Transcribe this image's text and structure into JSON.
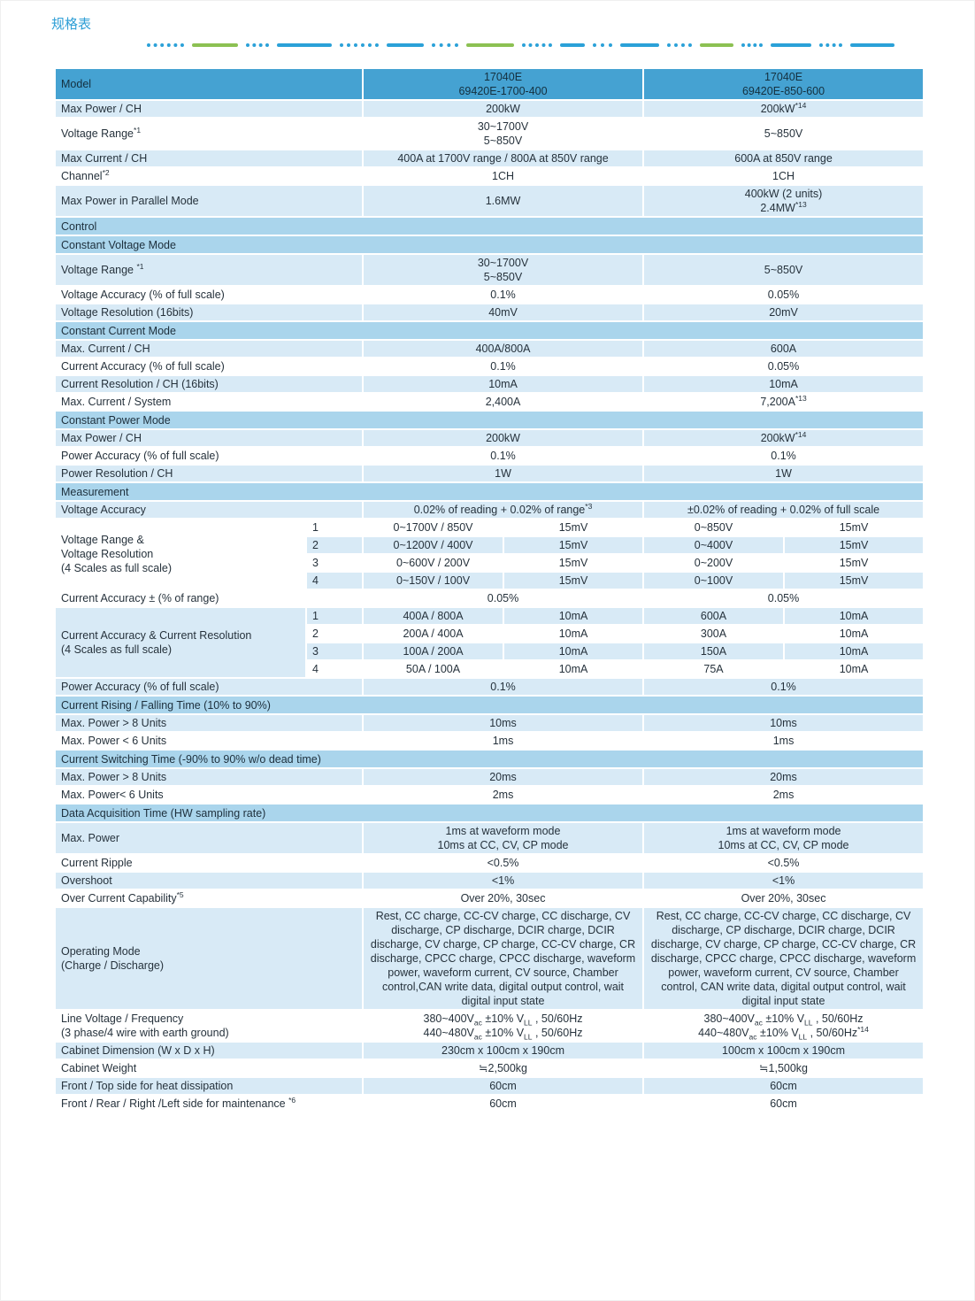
{
  "page": {
    "title": "规格表"
  },
  "table": {
    "header": {
      "model_label": "Model",
      "model1": [
        "17040E",
        "69420E-1700-400"
      ],
      "model2": [
        "17040E",
        "69420E-850-600"
      ]
    },
    "rows": [
      {
        "type": "data",
        "label": [
          "Max Power / CH"
        ],
        "v1": [
          "200kW"
        ],
        "v2": [
          "200kW^{*14}"
        ]
      },
      {
        "type": "data",
        "label": [
          "Voltage Range^{*1}"
        ],
        "v1": [
          "30~1700V",
          "5~850V"
        ],
        "v2": [
          "5~850V"
        ]
      },
      {
        "type": "data",
        "label": [
          "Max Current / CH"
        ],
        "v1": [
          "400A at 1700V range / 800A at 850V range"
        ],
        "v2": [
          "600A at 850V range"
        ]
      },
      {
        "type": "data",
        "label": [
          "Channel^{*2}"
        ],
        "v1": [
          "1CH"
        ],
        "v2": [
          "1CH"
        ]
      },
      {
        "type": "data",
        "label": [
          "Max Power in Parallel Mode"
        ],
        "v1": [
          "1.6MW"
        ],
        "v2": [
          "400kW (2 units)",
          "2.4MW^{*13}"
        ]
      },
      {
        "type": "section",
        "label": "Control"
      },
      {
        "type": "section",
        "label": "Constant Voltage Mode"
      },
      {
        "type": "data",
        "label": [
          "Voltage Range ^{*1}"
        ],
        "v1": [
          "30~1700V",
          "5~850V"
        ],
        "v2": [
          "5~850V"
        ]
      },
      {
        "type": "data",
        "label": [
          "Voltage Accuracy (% of full scale)"
        ],
        "v1": [
          "0.1%"
        ],
        "v2": [
          "0.05%"
        ]
      },
      {
        "type": "data",
        "label": [
          "Voltage Resolution (16bits)"
        ],
        "v1": [
          "40mV"
        ],
        "v2": [
          "20mV"
        ]
      },
      {
        "type": "section",
        "label": "Constant Current Mode"
      },
      {
        "type": "data",
        "label": [
          "Max. Current / CH"
        ],
        "v1": [
          "400A/800A"
        ],
        "v2": [
          "600A"
        ]
      },
      {
        "type": "data",
        "label": [
          "Current Accuracy (% of full scale)"
        ],
        "v1": [
          "0.1%"
        ],
        "v2": [
          "0.05%"
        ]
      },
      {
        "type": "data",
        "label": [
          "Current Resolution / CH (16bits)"
        ],
        "v1": [
          "10mA"
        ],
        "v2": [
          "10mA"
        ]
      },
      {
        "type": "data",
        "label": [
          "Max. Current / System"
        ],
        "v1": [
          "2,400A"
        ],
        "v2": [
          "7,200A^{*13}"
        ]
      },
      {
        "type": "section",
        "label": "Constant Power Mode"
      },
      {
        "type": "data",
        "label": [
          "Max Power / CH"
        ],
        "v1": [
          "200kW"
        ],
        "v2": [
          "200kW^{*14}"
        ]
      },
      {
        "type": "data",
        "label": [
          "Power Accuracy (% of full scale)"
        ],
        "v1": [
          "0.1%"
        ],
        "v2": [
          "0.1%"
        ]
      },
      {
        "type": "data",
        "label": [
          "Power Resolution / CH"
        ],
        "v1": [
          "1W"
        ],
        "v2": [
          "1W"
        ]
      },
      {
        "type": "section",
        "label": "Measurement"
      },
      {
        "type": "data",
        "label": [
          "Voltage Accuracy"
        ],
        "v1": [
          "0.02% of reading + 0.02% of range^{*3}"
        ],
        "v2": [
          "±0.02% of reading + 0.02% of full scale"
        ]
      },
      {
        "type": "group",
        "label": [
          "Voltage Range &",
          "Voltage Resolution",
          "(4 Scales as full scale)"
        ],
        "subrows": [
          {
            "n": "1",
            "c1": "0~1700V / 850V",
            "c2": "15mV",
            "c3": "0~850V",
            "c4": "15mV"
          },
          {
            "n": "2",
            "c1": "0~1200V / 400V",
            "c2": "15mV",
            "c3": "0~400V",
            "c4": "15mV"
          },
          {
            "n": "3",
            "c1": "0~600V / 200V",
            "c2": "15mV",
            "c3": "0~200V",
            "c4": "15mV"
          },
          {
            "n": "4",
            "c1": "0~150V / 100V",
            "c2": "15mV",
            "c3": "0~100V",
            "c4": "15mV"
          }
        ]
      },
      {
        "type": "data",
        "label": [
          "Current Accuracy ± (% of range)"
        ],
        "v1": [
          "0.05%"
        ],
        "v2": [
          "0.05%"
        ]
      },
      {
        "type": "group",
        "label": [
          "Current Accuracy & Current Resolution",
          "(4 Scales as full scale)"
        ],
        "subrows": [
          {
            "n": "1",
            "c1": "400A / 800A",
            "c2": "10mA",
            "c3": "600A",
            "c4": "10mA"
          },
          {
            "n": "2",
            "c1": "200A / 400A",
            "c2": "10mA",
            "c3": "300A",
            "c4": "10mA"
          },
          {
            "n": "3",
            "c1": "100A / 200A",
            "c2": "10mA",
            "c3": "150A",
            "c4": "10mA"
          },
          {
            "n": "4",
            "c1": "50A / 100A",
            "c2": "10mA",
            "c3": "75A",
            "c4": "10mA"
          }
        ]
      },
      {
        "type": "data",
        "label": [
          "Power Accuracy (% of full scale)"
        ],
        "v1": [
          "0.1%"
        ],
        "v2": [
          "0.1%"
        ]
      },
      {
        "type": "section",
        "label": "Current Rising / Falling Time (10% to 90%)"
      },
      {
        "type": "data",
        "label": [
          "Max. Power > 8 Units"
        ],
        "v1": [
          "10ms"
        ],
        "v2": [
          "10ms"
        ]
      },
      {
        "type": "data",
        "label": [
          "Max. Power < 6 Units"
        ],
        "v1": [
          "1ms"
        ],
        "v2": [
          "1ms"
        ]
      },
      {
        "type": "section",
        "label": "Current Switching Time (-90% to 90% w/o dead time)"
      },
      {
        "type": "data",
        "label": [
          "Max. Power > 8 Units"
        ],
        "v1": [
          "20ms"
        ],
        "v2": [
          "20ms"
        ]
      },
      {
        "type": "data",
        "label": [
          "Max. Power< 6 Units"
        ],
        "v1": [
          "2ms"
        ],
        "v2": [
          "2ms"
        ]
      },
      {
        "type": "section",
        "label": "Data Acquisition Time (HW sampling rate)"
      },
      {
        "type": "data",
        "label": [
          "Max. Power"
        ],
        "v1": [
          "1ms at waveform mode",
          "10ms at CC, CV, CP mode"
        ],
        "v2": [
          "1ms  at waveform mode",
          "10ms at CC, CV, CP mode"
        ]
      },
      {
        "type": "data",
        "label": [
          "Current Ripple"
        ],
        "v1": [
          "<0.5%"
        ],
        "v2": [
          "<0.5%"
        ]
      },
      {
        "type": "data",
        "label": [
          "Overshoot"
        ],
        "v1": [
          "<1%"
        ],
        "v2": [
          "<1%"
        ]
      },
      {
        "type": "data",
        "label": [
          "Over Current Capability^{*5}"
        ],
        "v1": [
          "Over 20%, 30sec"
        ],
        "v2": [
          "Over 20%, 30sec"
        ]
      },
      {
        "type": "data",
        "label": [
          "Operating Mode",
          "(Charge / Discharge)"
        ],
        "v1": [
          "Rest, CC charge, CC-CV charge, CC discharge, CV discharge, CP discharge, DCIR charge, DCIR discharge, CV charge, CP charge, CC-CV charge, CR discharge, CPCC charge, CPCC discharge, waveform power, waveform current, CV source, Chamber control,CAN write data, digital output control, wait digital input state"
        ],
        "v2": [
          "Rest, CC charge, CC-CV charge, CC discharge, CV discharge, CP discharge, DCIR charge, DCIR discharge, CV charge, CP charge, CC-CV charge, CR discharge, CPCC charge, CPCC discharge, waveform power, waveform current, CV source, Chamber control, CAN write data, digital output control, wait digital input state"
        ]
      },
      {
        "type": "data",
        "label": [
          "Line Voltage / Frequency",
          "(3 phase/4 wire with earth ground)"
        ],
        "v1": [
          "380~400V_{ac} ±10% V_{LL} , 50/60Hz",
          "440~480V_{ac} ±10% V_{LL} , 50/60Hz"
        ],
        "v2": [
          "380~400V_{ac} ±10% V_{LL} , 50/60Hz",
          "440~480V_{ac} ±10% V_{LL} , 50/60Hz^{*14}"
        ]
      },
      {
        "type": "data",
        "label": [
          "Cabinet Dimension (W x D x H)"
        ],
        "v1": [
          "230cm x 100cm x 190cm"
        ],
        "v2": [
          "100cm x 100cm x 190cm"
        ]
      },
      {
        "type": "data",
        "label": [
          "Cabinet Weight"
        ],
        "v1": [
          "≒2,500kg"
        ],
        "v2": [
          "≒1,500kg"
        ]
      },
      {
        "type": "data",
        "label": [
          "Front / Top side for heat dissipation"
        ],
        "v1": [
          "60cm"
        ],
        "v2": [
          "60cm"
        ]
      },
      {
        "type": "data",
        "label": [
          "Front / Rear / Right /Left side for maintenance ^{*6}"
        ],
        "v1": [
          "60cm"
        ],
        "v2": [
          "60cm"
        ]
      }
    ]
  }
}
